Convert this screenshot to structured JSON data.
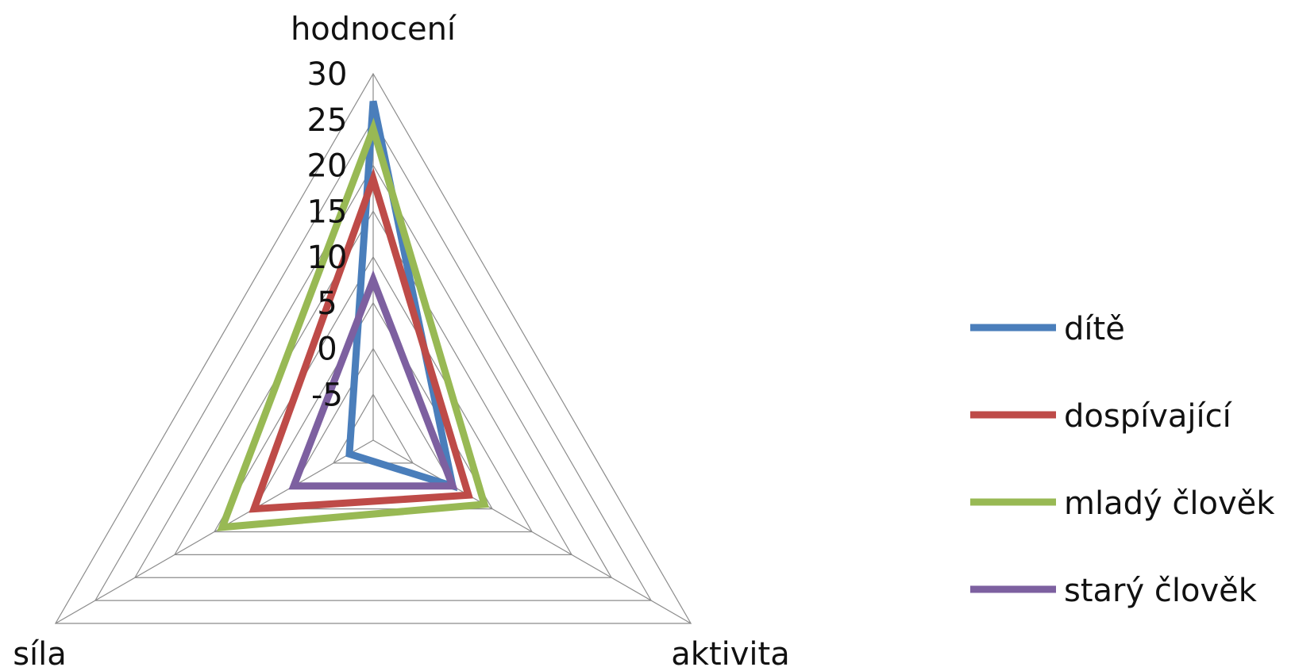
{
  "chart_data": {
    "type": "radar",
    "axes": [
      "hodnocení",
      "aktivita",
      "síla"
    ],
    "rlim": [
      -10,
      30
    ],
    "ticks": [
      -5,
      0,
      5,
      10,
      15,
      20,
      25,
      30
    ],
    "tick_labels": [
      "-5",
      "0",
      "5",
      "10",
      "15",
      "20",
      "25",
      "30"
    ],
    "grid": true,
    "legend_position": "right",
    "series": [
      {
        "name": "dítě",
        "color": "#4a7ebb",
        "values": [
          27,
          0,
          -7
        ]
      },
      {
        "name": "dospívající",
        "color": "#be4b48",
        "values": [
          18.5,
          2,
          5
        ]
      },
      {
        "name": "mladý člověk",
        "color": "#98b954",
        "values": [
          24,
          4,
          9
        ]
      },
      {
        "name": "starý člověk",
        "color": "#7d60a0",
        "values": [
          7.5,
          0,
          0
        ]
      }
    ]
  }
}
